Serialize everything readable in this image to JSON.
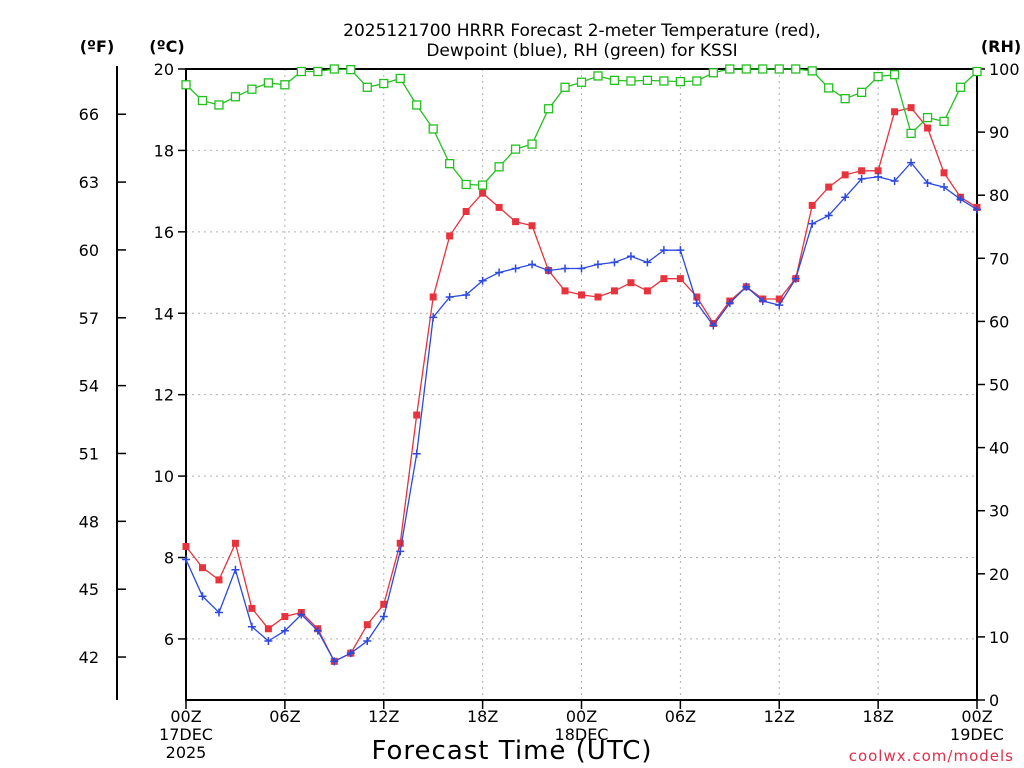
{
  "chart_data": {
    "type": "line",
    "title_line1": "2025121700 HRRR Forecast 2-meter Temperature (red),",
    "title_line2": "Dewpoint (blue), RH (green) for KSSI",
    "xlabel": "Forecast Time (UTC)",
    "credit": "coolwx.com/models",
    "unit_labels": {
      "fahrenheit": "(ºF)",
      "celsius": "(ºC)",
      "rh": "(RH)"
    },
    "x_range": [
      0,
      48
    ],
    "x_ticks": [
      {
        "hour": 0,
        "lines": [
          "00Z",
          "17DEC",
          "2025"
        ]
      },
      {
        "hour": 6,
        "lines": [
          "06Z"
        ]
      },
      {
        "hour": 12,
        "lines": [
          "12Z"
        ]
      },
      {
        "hour": 18,
        "lines": [
          "18Z"
        ]
      },
      {
        "hour": 24,
        "lines": [
          "00Z",
          "18DEC"
        ]
      },
      {
        "hour": 30,
        "lines": [
          "06Z"
        ]
      },
      {
        "hour": 36,
        "lines": [
          "12Z"
        ]
      },
      {
        "hour": 42,
        "lines": [
          "18Z"
        ]
      },
      {
        "hour": 48,
        "lines": [
          "00Z",
          "19DEC"
        ]
      }
    ],
    "celsius_axis": {
      "range": [
        4.5,
        20
      ],
      "ticks": [
        "6",
        "8",
        "10",
        "12",
        "14",
        "16",
        "18",
        "20"
      ]
    },
    "fahrenheit_axis": {
      "ticks": [
        "42",
        "45",
        "48",
        "51",
        "54",
        "57",
        "60",
        "63",
        "66"
      ]
    },
    "rh_axis": {
      "range": [
        0,
        100
      ],
      "ticks": [
        "0",
        "10",
        "20",
        "30",
        "40",
        "50",
        "60",
        "70",
        "80",
        "90",
        "100"
      ]
    },
    "series": [
      {
        "name": "Temperature",
        "units": "C",
        "axis": "celsius",
        "color": "#e8323c",
        "marker": "filled-square",
        "values": [
          8.27,
          7.75,
          7.45,
          8.35,
          6.75,
          6.25,
          6.55,
          6.65,
          6.25,
          5.45,
          5.65,
          6.35,
          6.85,
          8.35,
          11.5,
          14.4,
          15.9,
          16.5,
          16.95,
          16.6,
          16.25,
          16.15,
          15.05,
          14.55,
          14.45,
          14.4,
          14.55,
          14.75,
          14.55,
          14.85,
          14.85,
          14.4,
          13.75,
          14.3,
          14.65,
          14.35,
          14.35,
          14.85,
          16.65,
          17.1,
          17.4,
          17.5,
          17.5,
          18.95,
          19.05,
          18.55,
          17.45,
          16.85,
          16.6
        ]
      },
      {
        "name": "Dewpoint",
        "units": "C",
        "axis": "celsius",
        "color": "#2b49e0",
        "marker": "plus",
        "values": [
          7.95,
          7.05,
          6.65,
          7.7,
          6.3,
          5.95,
          6.2,
          6.6,
          6.2,
          5.45,
          5.65,
          5.95,
          6.55,
          8.15,
          10.55,
          13.9,
          14.4,
          14.45,
          14.8,
          15.0,
          15.1,
          15.2,
          15.05,
          15.1,
          15.1,
          15.2,
          15.25,
          15.4,
          15.25,
          15.55,
          15.55,
          14.25,
          13.7,
          14.25,
          14.65,
          14.3,
          14.2,
          14.85,
          16.2,
          16.4,
          16.85,
          17.3,
          17.35,
          17.25,
          17.7,
          17.2,
          17.1,
          16.8,
          16.55
        ]
      },
      {
        "name": "RH",
        "units": "%",
        "axis": "rh",
        "color": "#22c11e",
        "marker": "open-square",
        "values": [
          97.5,
          95.0,
          94.3,
          95.6,
          96.8,
          97.8,
          97.5,
          99.6,
          99.6,
          100,
          99.9,
          97.1,
          97.7,
          98.5,
          94.3,
          90.5,
          85.0,
          81.7,
          81.6,
          84.5,
          87.3,
          88.1,
          93.7,
          97.1,
          97.9,
          98.9,
          98.2,
          98.1,
          98.2,
          98.1,
          98.0,
          98.1,
          99.4,
          100,
          100,
          100,
          100,
          100,
          99.7,
          97.0,
          95.3,
          96.3,
          98.8,
          99.1,
          89.8,
          92.3,
          91.7,
          97.1,
          99.6
        ]
      }
    ]
  }
}
